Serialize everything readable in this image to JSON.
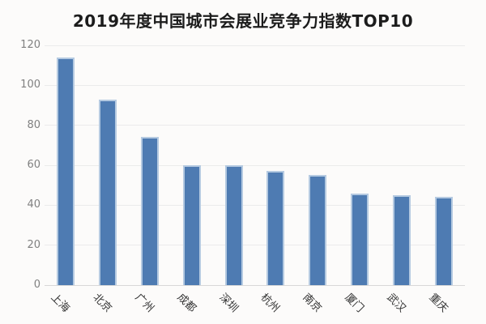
{
  "chart_data": {
    "type": "bar",
    "title": "2019年度中国城市会展业竞争力指数TOP10",
    "categories": [
      "上海",
      "北京",
      "广州",
      "成都",
      "深圳",
      "杭州",
      "南京",
      "厦门",
      "武汉",
      "重庆"
    ],
    "values": [
      114,
      93,
      74,
      60,
      60,
      57,
      55,
      46,
      45,
      44
    ],
    "xlabel": "",
    "ylabel": "",
    "ylim": [
      0,
      120
    ],
    "yticks": [
      0,
      20,
      40,
      60,
      80,
      100,
      120
    ],
    "grid": true,
    "legend_position": "none",
    "colors": {
      "bar_fill": "#4e7bb2",
      "bar_border": "#b5cae1",
      "background": "#fcfbfa",
      "gridline": "#ebebeb",
      "axis_line": "#d8d8d8",
      "ytick_text": "#808080",
      "xtick_text": "#333333",
      "title_text": "#1c1c1c"
    }
  }
}
